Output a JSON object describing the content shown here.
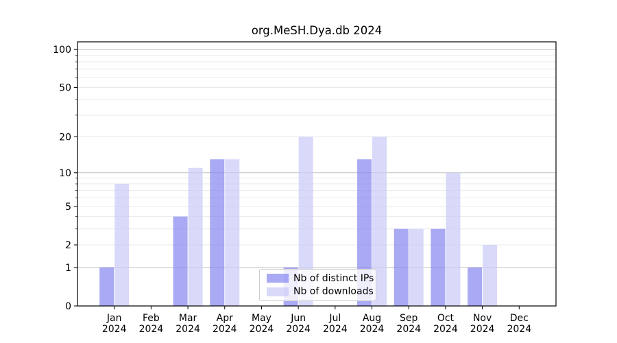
{
  "title": "org.MeSH.Dya.db 2024",
  "colors": {
    "ips": "rgba(132,132,240,0.7)",
    "downloads": "rgba(201,201,248,0.7)",
    "grid_major": "#c3c3c3",
    "grid_minor": "#e9e9e9",
    "spine": "#000000"
  },
  "legend": {
    "items": [
      {
        "label": "Nb of distinct IPs",
        "color_key": "ips"
      },
      {
        "label": "Nb of downloads",
        "color_key": "downloads"
      }
    ]
  },
  "chart_data": {
    "type": "bar",
    "title": "org.MeSH.Dya.db 2024",
    "categories": [
      "Jan 2024",
      "Feb 2024",
      "Mar 2024",
      "Apr 2024",
      "May 2024",
      "Jun 2024",
      "Jul 2024",
      "Aug 2024",
      "Sep 2024",
      "Oct 2024",
      "Nov 2024",
      "Dec 2024"
    ],
    "series": [
      {
        "name": "Nb of distinct IPs",
        "values": [
          1,
          0,
          4,
          13,
          0,
          1,
          0,
          13,
          3,
          3,
          1,
          0
        ]
      },
      {
        "name": "Nb of downloads",
        "values": [
          8,
          0,
          11,
          13,
          0,
          20,
          0,
          20,
          3,
          10,
          2,
          0
        ]
      }
    ],
    "y_scale": "log1p",
    "y_ticks": [
      0,
      1,
      2,
      5,
      10,
      20,
      50,
      100
    ],
    "y_major_gridlines": [
      1,
      10,
      100
    ],
    "y_minor_gridlines": [
      2,
      3,
      4,
      5,
      6,
      7,
      8,
      9,
      20,
      30,
      40,
      50,
      60,
      70,
      80,
      90
    ],
    "ylim": [
      0,
      115
    ],
    "grid": true,
    "legend_position": "lower-center",
    "xlabel": "",
    "ylabel": ""
  }
}
